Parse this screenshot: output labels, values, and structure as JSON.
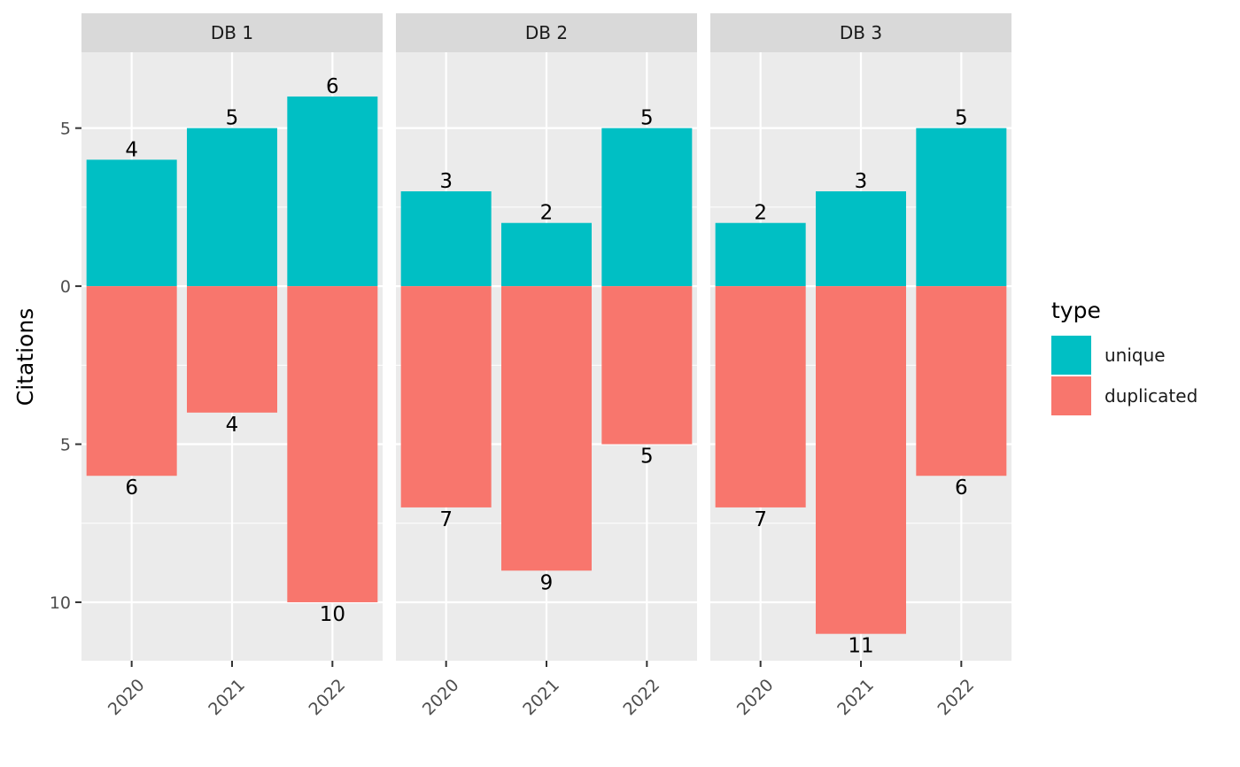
{
  "chart_data": {
    "type": "bar",
    "facets": [
      "DB 1",
      "DB 2",
      "DB 3"
    ],
    "categories": [
      "2020",
      "2021",
      "2022"
    ],
    "series": [
      {
        "name": "unique",
        "color": "#00BFC4",
        "direction": "up",
        "values": {
          "DB 1": [
            4,
            5,
            6
          ],
          "DB 2": [
            3,
            2,
            5
          ],
          "DB 3": [
            2,
            3,
            5
          ]
        }
      },
      {
        "name": "duplicated",
        "color": "#F8766D",
        "direction": "down",
        "values": {
          "DB 1": [
            6,
            4,
            10
          ],
          "DB 2": [
            7,
            9,
            5
          ],
          "DB 3": [
            7,
            11,
            6
          ]
        }
      }
    ],
    "ylabel": "Citations",
    "xlabel": "",
    "ylim": [
      -11.85,
      7.4
    ],
    "y_ticks": [
      5,
      0,
      -5,
      -10
    ],
    "y_tick_labels": [
      "5",
      "0",
      "5",
      "10"
    ],
    "legend": {
      "title": "type",
      "position": "right",
      "entries": [
        "unique",
        "duplicated"
      ]
    },
    "panel_background": "#EBEBEB",
    "strip_background": "#D9D9D9",
    "grid": true
  }
}
